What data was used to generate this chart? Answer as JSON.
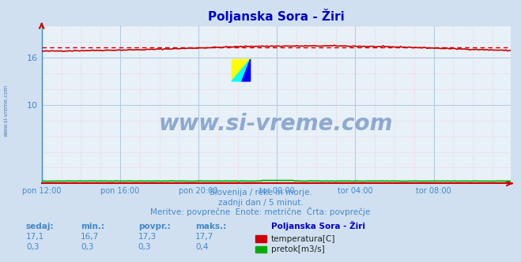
{
  "title": "Poljanska Sora - Žiri",
  "bg_color": "#d0e0f0",
  "plot_bg_color": "#e8f0f8",
  "grid_color_major": "#b0c8e0",
  "grid_color_minor": "#e8c8c8",
  "title_color": "#0000cc",
  "axis_label_color": "#4488cc",
  "text_color": "#4488cc",
  "subtitle_color": "#4488cc",
  "watermark_text": "www.si-vreme.com",
  "watermark_color": "#3366aa",
  "subtitle_lines": [
    "Slovenija / reke in morje.",
    "zadnji dan / 5 minut.",
    "Meritve: povprečne  Enote: metrične  Črta: povprečje"
  ],
  "xtick_labels": [
    "pon 12:00",
    "pon 16:00",
    "pon 20:00",
    "tor 00:00",
    "tor 04:00",
    "tor 08:00"
  ],
  "xtick_positions": [
    0,
    48,
    96,
    144,
    192,
    240
  ],
  "n_points": 288,
  "temp_min": 16.7,
  "temp_max": 17.7,
  "temp_avg": 17.35,
  "ylim_min": 0,
  "ylim_max": 20,
  "yticks": [
    10,
    16
  ],
  "temp_color": "#cc0000",
  "flow_color": "#00aa00",
  "legend_title": "Poljanska Sora - Žiri",
  "legend_items": [
    {
      "label": "temperatura[C]",
      "color": "#cc0000"
    },
    {
      "label": "pretok[m3/s]",
      "color": "#00aa00"
    }
  ],
  "table_headers": [
    "sedaj:",
    "min.:",
    "povpr.:",
    "maks.:"
  ],
  "table_row1": [
    "17,1",
    "16,7",
    "17,3",
    "17,7"
  ],
  "table_row2": [
    "0,3",
    "0,3",
    "0,3",
    "0,4"
  ]
}
